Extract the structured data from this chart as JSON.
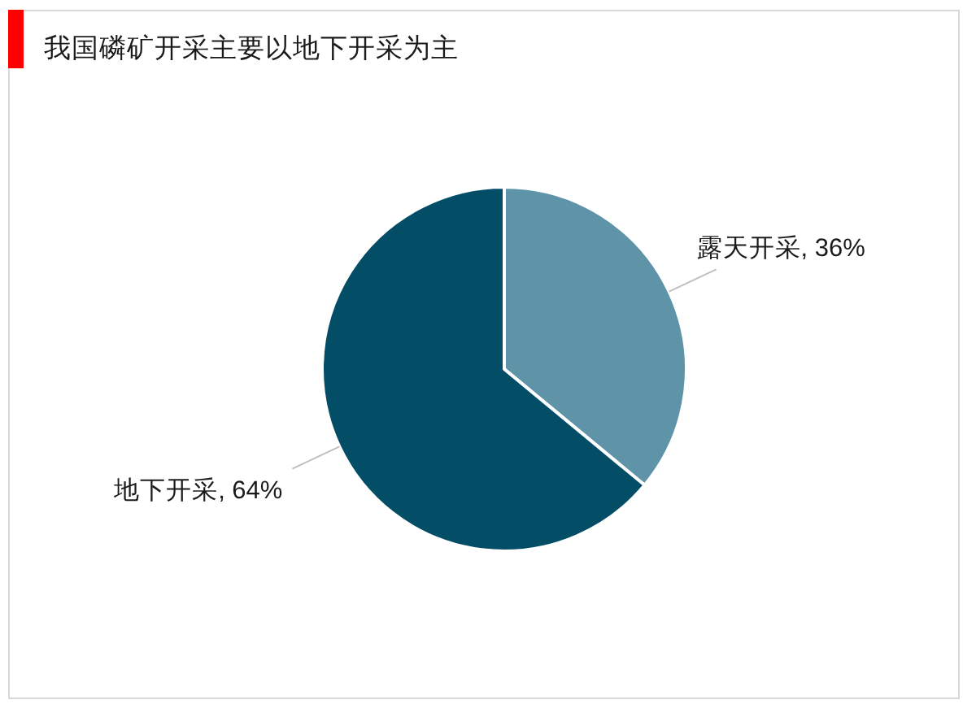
{
  "chart_data": {
    "type": "pie",
    "title": "我国磷矿开采主要以地下开采为主",
    "categories": [
      "露天开采",
      "地下开采"
    ],
    "values": [
      36,
      64
    ],
    "value_labels": [
      "36%",
      "64%"
    ],
    "colors": [
      "#5e93a8",
      "#034d67"
    ]
  }
}
